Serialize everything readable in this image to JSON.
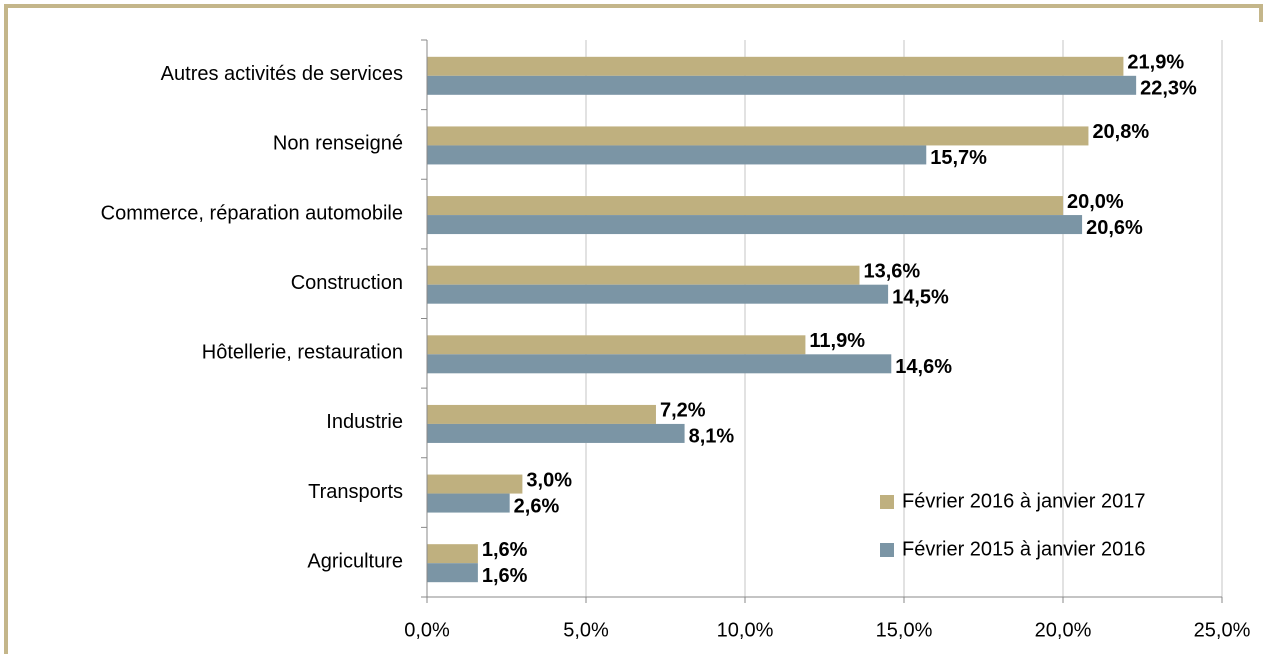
{
  "chart_data": {
    "type": "bar",
    "orientation": "horizontal",
    "categories": [
      "Autres activités de services",
      "Non renseigné",
      "Commerce, réparation automobile",
      "Construction",
      "Hôtellerie, restauration",
      "Industrie",
      "Transports",
      "Agriculture"
    ],
    "series": [
      {
        "name": "Février 2016 à janvier 2017",
        "color": "#bfb07f",
        "label_color": "#a8955f",
        "values": [
          21.9,
          20.8,
          20.0,
          13.6,
          11.9,
          7.2,
          3.0,
          1.6
        ],
        "value_labels": [
          "21,9%",
          "20,8%",
          "20,0%",
          "13,6%",
          "11,9%",
          "7,2%",
          "3,0%",
          "1,6%"
        ]
      },
      {
        "name": "Février 2015 à janvier 2016",
        "color": "#7b95a5",
        "label_color": "#7b95a5",
        "values": [
          22.3,
          15.7,
          20.6,
          14.5,
          14.6,
          8.1,
          2.6,
          1.6
        ],
        "value_labels": [
          "22,3%",
          "15,7%",
          "20,6%",
          "14,5%",
          "14,6%",
          "8,1%",
          "2,6%",
          "1,6%"
        ]
      }
    ],
    "xlim": [
      0,
      25
    ],
    "xticks": [
      {
        "value": 0,
        "label": "0,0%"
      },
      {
        "value": 5,
        "label": "5,0%"
      },
      {
        "value": 10,
        "label": "10,0%"
      },
      {
        "value": 15,
        "label": "15,0%"
      },
      {
        "value": 20,
        "label": "20,0%"
      },
      {
        "value": 25,
        "label": "25,0%"
      }
    ],
    "grid": true,
    "legend": "lower right"
  }
}
